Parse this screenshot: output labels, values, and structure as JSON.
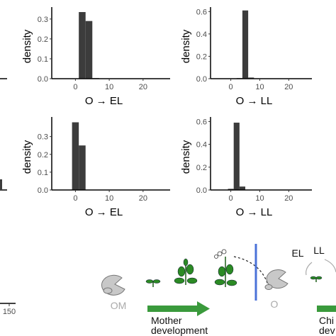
{
  "chart_data": [
    {
      "type": "bar",
      "panel": "top-middle",
      "xlabel": "O → EL",
      "ylabel": "density",
      "xlim": [
        -7,
        28
      ],
      "ylim": [
        0,
        0.36
      ],
      "xticks": [
        0,
        10,
        20
      ],
      "yticks": [
        0.0,
        0.1,
        0.2,
        0.3
      ],
      "ytick_labels": [
        "0.0",
        "0.1",
        "0.2",
        "0.3"
      ],
      "bin_width": 2,
      "bins": [
        {
          "x0": 1,
          "x1": 3,
          "value": 0.335
        },
        {
          "x0": 3,
          "x1": 5,
          "value": 0.29
        },
        {
          "x0": 5,
          "x1": 7,
          "value": 0.003
        }
      ]
    },
    {
      "type": "bar",
      "panel": "top-right",
      "xlabel": "O → LL",
      "ylabel": "density",
      "xlim": [
        -7,
        28
      ],
      "ylim": [
        0,
        0.64
      ],
      "xticks": [
        0,
        10,
        20
      ],
      "yticks": [
        0.0,
        0.2,
        0.4,
        0.6
      ],
      "ytick_labels": [
        "0.0",
        "0.2",
        "0.4",
        "0.6"
      ],
      "bin_width": 2,
      "bins": [
        {
          "x0": 2,
          "x1": 4,
          "value": 0.005
        },
        {
          "x0": 4,
          "x1": 6,
          "value": 0.61
        },
        {
          "x0": 6,
          "x1": 8,
          "value": 0.01
        }
      ]
    },
    {
      "type": "bar",
      "panel": "middle-middle",
      "xlabel": "O → EL",
      "ylabel": "density",
      "xlim": [
        -7,
        28
      ],
      "ylim": [
        0,
        0.41
      ],
      "xticks": [
        0,
        10,
        20
      ],
      "yticks": [
        0.0,
        0.1,
        0.2,
        0.3
      ],
      "ytick_labels": [
        "0.0",
        "0.1",
        "0.2",
        "0.3"
      ],
      "bin_width": 2,
      "bins": [
        {
          "x0": -1,
          "x1": 1,
          "value": 0.38
        },
        {
          "x0": 1,
          "x1": 3,
          "value": 0.25
        }
      ]
    },
    {
      "type": "bar",
      "panel": "middle-right",
      "xlabel": "O → LL",
      "ylabel": "density",
      "xlim": [
        -7,
        28
      ],
      "ylim": [
        0,
        0.64
      ],
      "xticks": [
        0,
        10,
        20
      ],
      "yticks": [
        0.0,
        0.2,
        0.4,
        0.6
      ],
      "ytick_labels": [
        "0.0",
        "0.2",
        "0.4",
        "0.6"
      ],
      "bin_width": 2,
      "bins": [
        {
          "x0": -1,
          "x1": 1,
          "value": 0.01
        },
        {
          "x0": 1,
          "x1": 3,
          "value": 0.59
        },
        {
          "x0": 3,
          "x1": 5,
          "value": 0.03
        }
      ]
    }
  ],
  "colors": {
    "bar": "#3c3c3c",
    "axis": "#000000",
    "tick_text": "#4d4d4d",
    "label_text": "#000000",
    "diagram_gray": "#bdbdbd",
    "diagram_arrow": "#3a9a3c",
    "divider": "#4a72d8",
    "leaf": "#2b8a24"
  },
  "diagram": {
    "left_axis_tick": "150",
    "mother_label": "OM",
    "offspring_label": "O",
    "el_label": "EL",
    "ll_label": "LL",
    "mother_dev_line1": "Mother",
    "mother_dev_line2": "development",
    "child_dev_line1": "Chi",
    "child_dev_line2": "dev"
  }
}
